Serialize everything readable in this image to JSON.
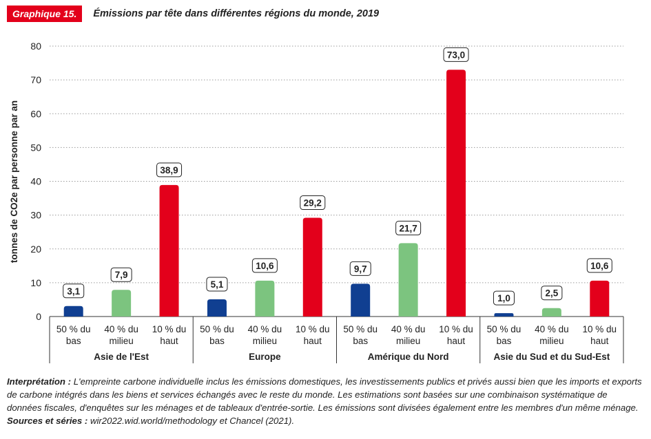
{
  "header": {
    "badge": "Graphique 15.",
    "title": "Émissions par tête dans différentes régions du monde, 2019"
  },
  "colors": {
    "bas": "#103f91",
    "milieu": "#7cc47f",
    "haut": "#e3001b",
    "badge": "#e3001b"
  },
  "chart_data": {
    "type": "bar",
    "ylabel": "tonnes de CO2e par personne par an",
    "ylim": [
      0,
      80
    ],
    "yticks": [
      0,
      10,
      20,
      30,
      40,
      50,
      60,
      70,
      80
    ],
    "groups": [
      {
        "region": "Asie de l'Est",
        "bars": [
          {
            "line1": "50 % du",
            "line2": "bas",
            "value": 3.1,
            "label": "3,1",
            "kind": "bas"
          },
          {
            "line1": "40 % du",
            "line2": "milieu",
            "value": 7.9,
            "label": "7,9",
            "kind": "milieu"
          },
          {
            "line1": "10 % du",
            "line2": "haut",
            "value": 38.9,
            "label": "38,9",
            "kind": "haut"
          }
        ]
      },
      {
        "region": "Europe",
        "bars": [
          {
            "line1": "50 % du",
            "line2": "bas",
            "value": 5.1,
            "label": "5,1",
            "kind": "bas"
          },
          {
            "line1": "40 % du",
            "line2": "milieu",
            "value": 10.6,
            "label": "10,6",
            "kind": "milieu"
          },
          {
            "line1": "10 % du",
            "line2": "haut",
            "value": 29.2,
            "label": "29,2",
            "kind": "haut"
          }
        ]
      },
      {
        "region": "Amérique du Nord",
        "bars": [
          {
            "line1": "50 % du",
            "line2": "bas",
            "value": 9.7,
            "label": "9,7",
            "kind": "bas"
          },
          {
            "line1": "40 % du",
            "line2": "milieu",
            "value": 21.7,
            "label": "21,7",
            "kind": "milieu"
          },
          {
            "line1": "10 % du",
            "line2": "haut",
            "value": 73.0,
            "label": "73,0",
            "kind": "haut"
          }
        ]
      },
      {
        "region": "Asie du Sud et du Sud-Est",
        "bars": [
          {
            "line1": "50 % du",
            "line2": "bas",
            "value": 1.0,
            "label": "1,0",
            "kind": "bas"
          },
          {
            "line1": "40 % du",
            "line2": "milieu",
            "value": 2.5,
            "label": "2,5",
            "kind": "milieu"
          },
          {
            "line1": "10 % du",
            "line2": "haut",
            "value": 10.6,
            "label": "10,6",
            "kind": "haut"
          }
        ]
      }
    ]
  },
  "note": {
    "lead": "Interprétation :",
    "text": " L'empreinte carbone individuelle inclus les émissions domestiques, les investissements publics et privés aussi bien que les imports et exports de carbone intégrés dans les biens et services échangés avec le reste du monde. Les estimations sont basées sur une combinaison systématique de données fiscales, d'enquêtes sur les ménages et de tableaux d'entrée-sortie. Les émissions sont divisées également entre les membres d'un même ménage. ",
    "sources_lead": "Sources et séries :",
    "sources_text": " wir2022.wid.world/methodology et Chancel (2021)."
  }
}
